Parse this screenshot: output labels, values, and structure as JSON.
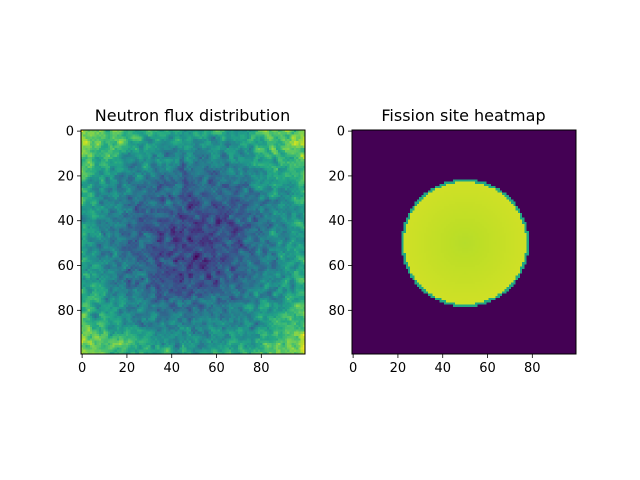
{
  "chart_data": [
    {
      "type": "heatmap",
      "title": "Neutron flux distribution",
      "grid_size": [
        100,
        100
      ],
      "colormap": "viridis",
      "xlim": [
        0,
        99
      ],
      "ylim": [
        99,
        0
      ],
      "xticks": [
        0,
        20,
        40,
        60,
        80
      ],
      "yticks": [
        0,
        20,
        40,
        60,
        80
      ],
      "grid": false,
      "pattern": {
        "shape": "radial, noisy; lowest values near center (~[50,50]), rising toward corners",
        "center_value": 0.2,
        "edge_value": 0.55,
        "corner_value": 0.85,
        "noise_std": 0.08
      }
    },
    {
      "type": "heatmap",
      "title": "Fission site heatmap",
      "grid_size": [
        100,
        100
      ],
      "colormap": "viridis",
      "xlim": [
        0,
        99
      ],
      "ylim": [
        99,
        0
      ],
      "xticks": [
        0,
        20,
        40,
        60,
        80
      ],
      "yticks": [
        0,
        20,
        40,
        60,
        80
      ],
      "grid": false,
      "pattern": {
        "shape": "filled disc",
        "center": [
          50,
          50
        ],
        "radius": 28,
        "inside_value": 0.93,
        "outside_value": 0.0,
        "rim_value": 0.6
      }
    }
  ]
}
